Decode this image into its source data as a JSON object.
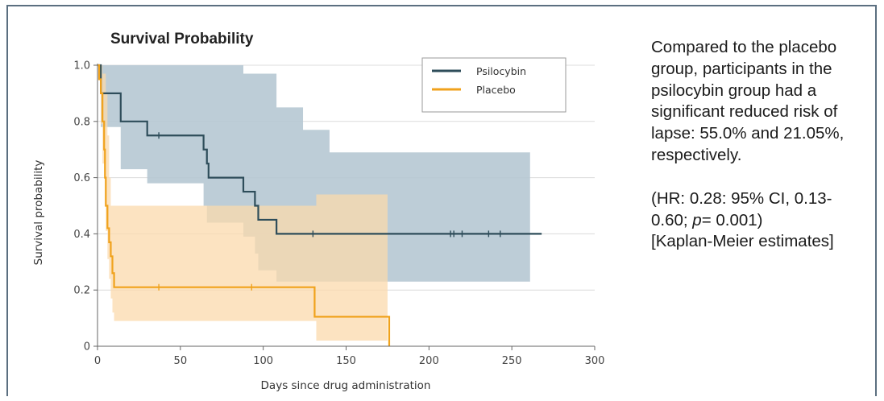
{
  "chart_data": {
    "type": "line",
    "title": "Survival Probability",
    "xlabel": "Days since drug administration",
    "ylabel": "Survival probability",
    "xlim": [
      0,
      300
    ],
    "ylim": [
      0,
      1.0
    ],
    "xticks": [
      0,
      50,
      100,
      150,
      200,
      250,
      300
    ],
    "yticks": [
      0,
      0.2,
      0.4,
      0.6,
      0.8,
      1.0
    ],
    "ytick_labels": [
      "0",
      "0.2",
      "0.4",
      "0.6",
      "0.8",
      "1.0"
    ],
    "grid": "horizontal",
    "legend_position": "top-right",
    "series": [
      {
        "name": "Psilocybin",
        "color": "#2e4d5a",
        "band_color": "#b6c8d3",
        "steps": [
          [
            0,
            1.0
          ],
          [
            2,
            0.9
          ],
          [
            14,
            0.8
          ],
          [
            30,
            0.75
          ],
          [
            64,
            0.7
          ],
          [
            66,
            0.65
          ],
          [
            67,
            0.6
          ],
          [
            88,
            0.55
          ],
          [
            95,
            0.5
          ],
          [
            97,
            0.45
          ],
          [
            108,
            0.4
          ],
          [
            268,
            0.4
          ]
        ],
        "ci_upper": [
          [
            0,
            1.0
          ],
          [
            66,
            1.0
          ],
          [
            88,
            0.97
          ],
          [
            108,
            0.85
          ],
          [
            124,
            0.77
          ],
          [
            140,
            0.69
          ],
          [
            261,
            0.69
          ]
        ],
        "ci_lower": [
          [
            0,
            1.0
          ],
          [
            2,
            0.78
          ],
          [
            14,
            0.63
          ],
          [
            30,
            0.58
          ],
          [
            64,
            0.5
          ],
          [
            66,
            0.44
          ],
          [
            88,
            0.39
          ],
          [
            95,
            0.33
          ],
          [
            97,
            0.27
          ],
          [
            108,
            0.23
          ],
          [
            261,
            0.23
          ]
        ],
        "censored": [
          37,
          130,
          213,
          215,
          220,
          236,
          243
        ]
      },
      {
        "name": "Placebo",
        "color": "#f0a21c",
        "band_color": "#fbd9ac",
        "steps": [
          [
            0,
            1.0
          ],
          [
            1,
            0.95
          ],
          [
            2,
            0.9
          ],
          [
            3,
            0.8
          ],
          [
            4,
            0.7
          ],
          [
            4.5,
            0.6
          ],
          [
            5,
            0.5
          ],
          [
            6,
            0.42
          ],
          [
            7,
            0.37
          ],
          [
            8,
            0.32
          ],
          [
            9,
            0.26
          ],
          [
            10,
            0.21
          ],
          [
            130,
            0.21
          ],
          [
            131,
            0.105
          ],
          [
            175,
            0.105
          ],
          [
            176,
            0
          ]
        ],
        "ci_upper": [
          [
            0,
            1.0
          ],
          [
            2,
            1.0
          ],
          [
            3,
            0.97
          ],
          [
            5,
            0.9
          ],
          [
            6,
            0.75
          ],
          [
            7,
            0.6
          ],
          [
            8,
            0.5
          ],
          [
            131,
            0.5
          ],
          [
            132,
            0.54
          ],
          [
            175,
            0.54
          ]
        ],
        "ci_lower": [
          [
            0,
            1.0
          ],
          [
            2,
            0.79
          ],
          [
            3,
            0.65
          ],
          [
            5,
            0.41
          ],
          [
            6,
            0.31
          ],
          [
            7,
            0.24
          ],
          [
            8,
            0.17
          ],
          [
            9,
            0.12
          ],
          [
            10,
            0.09
          ],
          [
            131,
            0.09
          ],
          [
            132,
            0.02
          ],
          [
            175,
            0.02
          ]
        ],
        "censored": [
          37,
          93
        ]
      }
    ]
  },
  "side_text": {
    "summary": "Compared to the placebo group, participants in the psilocybin group had a significant reduced risk of lapse: 55.0% and 21.05%, respectively.",
    "stats_pre": "(HR: 0.28: 95% CI, 0.13-0.60; ",
    "stats_p": "p",
    "stats_post": "= 0.001)",
    "method": "[Kaplan-Meier estimates]"
  }
}
